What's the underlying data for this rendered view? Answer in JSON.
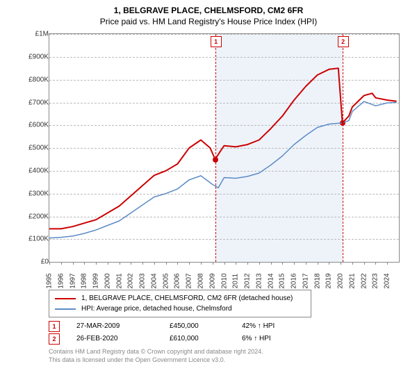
{
  "title_line1": "1, BELGRAVE PLACE, CHELMSFORD, CM2 6FR",
  "title_line2": "Price paid vs. HM Land Registry's House Price Index (HPI)",
  "chart": {
    "type": "line",
    "background_color": "#ffffff",
    "shaded_band_color": "#eef3fa",
    "grid_color": "#bbbbbb",
    "axis_color": "#888888",
    "xlim": [
      1995,
      2025
    ],
    "ylim": [
      0,
      1000000
    ],
    "ytick_step": 100000,
    "yticks": [
      "£0",
      "£100K",
      "£200K",
      "£300K",
      "£400K",
      "£500K",
      "£600K",
      "£700K",
      "£800K",
      "£900K",
      "£1M"
    ],
    "xticks": [
      1995,
      1996,
      1997,
      1998,
      1999,
      2000,
      2001,
      2002,
      2003,
      2004,
      2005,
      2006,
      2007,
      2008,
      2009,
      2010,
      2011,
      2012,
      2013,
      2014,
      2015,
      2016,
      2017,
      2018,
      2019,
      2020,
      2021,
      2022,
      2023,
      2024
    ],
    "shaded_band": {
      "x_start": 2009.23,
      "x_end": 2020.15
    },
    "series": [
      {
        "name": "price_paid",
        "label": "1, BELGRAVE PLACE, CHELMSFORD, CM2 6FR (detached house)",
        "color": "#cc0000",
        "line_width": 2,
        "points": [
          [
            1995,
            145000
          ],
          [
            1996,
            145000
          ],
          [
            1997,
            155000
          ],
          [
            1998,
            170000
          ],
          [
            1999,
            185000
          ],
          [
            2000,
            215000
          ],
          [
            2001,
            245000
          ],
          [
            2002,
            290000
          ],
          [
            2003,
            335000
          ],
          [
            2004,
            380000
          ],
          [
            2005,
            400000
          ],
          [
            2006,
            430000
          ],
          [
            2007,
            500000
          ],
          [
            2008,
            535000
          ],
          [
            2008.8,
            500000
          ],
          [
            2009.23,
            450000
          ],
          [
            2009.6,
            480000
          ],
          [
            2010,
            510000
          ],
          [
            2011,
            505000
          ],
          [
            2012,
            515000
          ],
          [
            2013,
            535000
          ],
          [
            2014,
            585000
          ],
          [
            2015,
            640000
          ],
          [
            2016,
            710000
          ],
          [
            2017,
            770000
          ],
          [
            2018,
            820000
          ],
          [
            2019,
            845000
          ],
          [
            2019.8,
            850000
          ],
          [
            2020.15,
            610000
          ],
          [
            2020.7,
            640000
          ],
          [
            2021,
            680000
          ],
          [
            2022,
            730000
          ],
          [
            2022.7,
            740000
          ],
          [
            2023,
            720000
          ],
          [
            2024,
            710000
          ],
          [
            2024.8,
            705000
          ]
        ]
      },
      {
        "name": "hpi",
        "label": "HPI: Average price, detached house, Chelmsford",
        "color": "#5b8bc6",
        "line_width": 1.5,
        "points": [
          [
            1995,
            105000
          ],
          [
            1996,
            108000
          ],
          [
            1997,
            113000
          ],
          [
            1998,
            125000
          ],
          [
            1999,
            140000
          ],
          [
            2000,
            160000
          ],
          [
            2001,
            180000
          ],
          [
            2002,
            215000
          ],
          [
            2003,
            250000
          ],
          [
            2004,
            285000
          ],
          [
            2005,
            300000
          ],
          [
            2006,
            320000
          ],
          [
            2007,
            360000
          ],
          [
            2008,
            378000
          ],
          [
            2009,
            340000
          ],
          [
            2009.5,
            325000
          ],
          [
            2010,
            370000
          ],
          [
            2011,
            367000
          ],
          [
            2012,
            375000
          ],
          [
            2013,
            390000
          ],
          [
            2014,
            425000
          ],
          [
            2015,
            465000
          ],
          [
            2016,
            515000
          ],
          [
            2017,
            555000
          ],
          [
            2018,
            590000
          ],
          [
            2019,
            605000
          ],
          [
            2020.15,
            610000
          ],
          [
            2020.7,
            620000
          ],
          [
            2021,
            660000
          ],
          [
            2022,
            704000
          ],
          [
            2023,
            685000
          ],
          [
            2024,
            698000
          ],
          [
            2024.8,
            700000
          ]
        ]
      }
    ],
    "markers": [
      {
        "n": "1",
        "x": 2009.23,
        "y": 450000,
        "date": "27-MAR-2009",
        "price": "£450,000",
        "pct": "42% ↑ HPI"
      },
      {
        "n": "2",
        "x": 2020.15,
        "y": 610000,
        "date": "26-FEB-2020",
        "price": "£610,000",
        "pct": "6% ↑ HPI"
      }
    ],
    "title_fontsize": 12,
    "label_fontsize": 10
  },
  "footer_line1": "Contains HM Land Registry data © Crown copyright and database right 2024.",
  "footer_line2": "This data is licensed under the Open Government Licence v3.0."
}
